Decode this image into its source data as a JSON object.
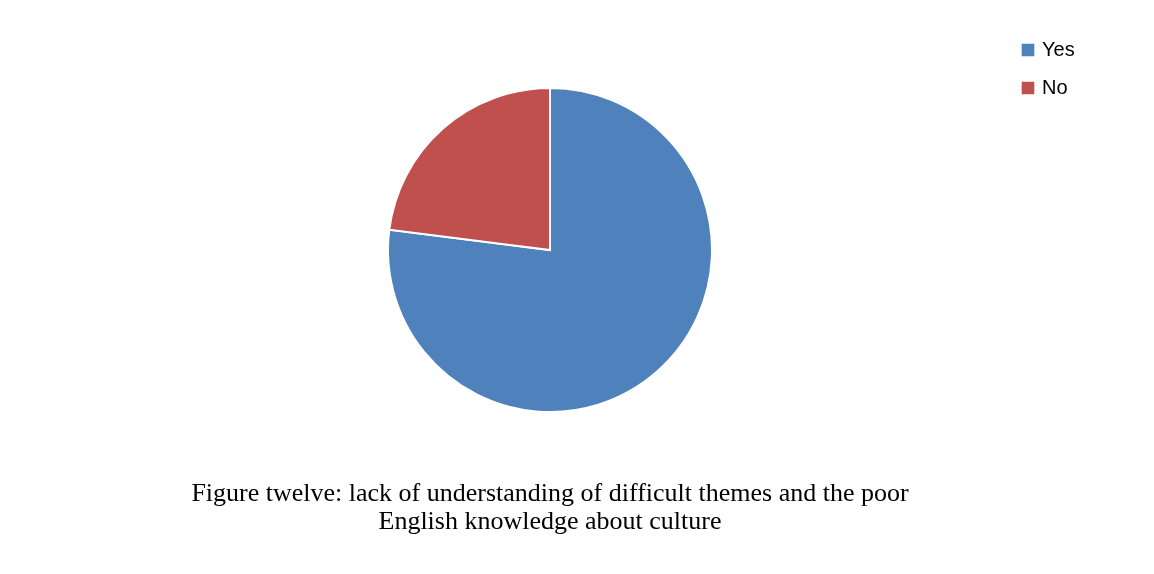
{
  "chart_data": {
    "type": "pie",
    "title": "Figure twelve: lack of understanding of difficult themes and the poor English knowledge about culture",
    "categories": [
      "Yes",
      "No"
    ],
    "values": [
      77,
      23
    ],
    "colors": [
      "#4f81bd",
      "#c0504d"
    ],
    "legend": "right"
  }
}
